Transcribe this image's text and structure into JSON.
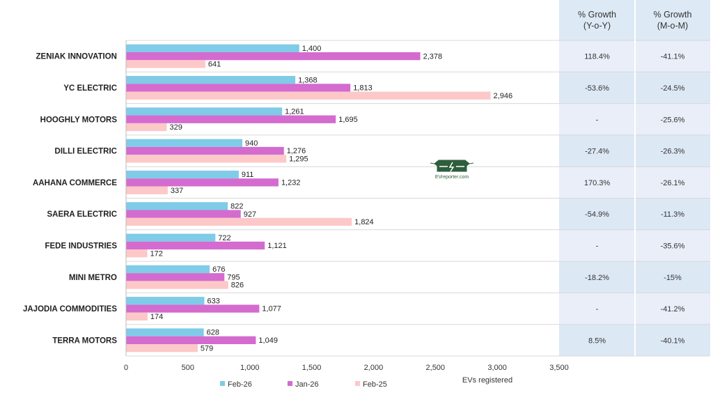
{
  "chart_data": {
    "type": "bar",
    "orientation": "horizontal",
    "categories": [
      "ZENIAK INNOVATION",
      "YC ELECTRIC",
      "HOOGHLY MOTORS",
      "DILLI ELECTRIC",
      "AAHANA COMMERCE",
      "SAERA ELECTRIC",
      "FEDE INDUSTRIES",
      "MINI METRO",
      "JAJODIA COMMODITIES",
      "TERRA MOTORS"
    ],
    "series": [
      {
        "name": "Feb-26",
        "color": "#7fcbe8",
        "values": [
          1400,
          1368,
          1261,
          940,
          911,
          822,
          722,
          676,
          633,
          628
        ],
        "labels": [
          "1,400",
          "1,368",
          "1,261",
          "940",
          "911",
          "822",
          "722",
          "676",
          "633",
          "628"
        ]
      },
      {
        "name": "Jan-26",
        "color": "#d46bcf",
        "values": [
          2378,
          1813,
          1695,
          1276,
          1232,
          927,
          1121,
          795,
          1077,
          1049
        ],
        "labels": [
          "2,378",
          "1,813",
          "1,695",
          "1,276",
          "1,232",
          "927",
          "1,121",
          "795",
          "1,077",
          "1,049"
        ]
      },
      {
        "name": "Feb-25",
        "color": "#fcc8c8",
        "values": [
          641,
          2946,
          329,
          1295,
          337,
          1824,
          172,
          826,
          174,
          579
        ],
        "labels": [
          "641",
          "2,946",
          "329",
          "1,295",
          "337",
          "1,824",
          "172",
          "826",
          "174",
          "579"
        ]
      }
    ],
    "xlabel": "EVs registered",
    "xlim": [
      0,
      3500
    ],
    "xticks": [
      "0",
      "500",
      "1,000",
      "1,500",
      "2,000",
      "2,500",
      "3,000",
      "3,500"
    ],
    "legend_placement": "bottom",
    "grid": false,
    "table": {
      "headers": [
        [
          "% Growth",
          "(Y-o-Y)"
        ],
        [
          "% Growth",
          "(M-o-M)"
        ]
      ],
      "rows": [
        [
          "118.4%",
          "-41.1%"
        ],
        [
          "-53.6%",
          "-24.5%"
        ],
        [
          "-",
          "-25.6%"
        ],
        [
          "-27.4%",
          "-26.3%"
        ],
        [
          "170.3%",
          "-26.1%"
        ],
        [
          "-54.9%",
          "-11.3%"
        ],
        [
          "-",
          "-35.6%"
        ],
        [
          "-18.2%",
          "-15%"
        ],
        [
          "-",
          "-41.2%"
        ],
        [
          "8.5%",
          "-40.1%"
        ]
      ],
      "header_color": "#dde9f5",
      "row_colors": [
        "#e9eef8",
        "#dde8f5"
      ]
    },
    "watermark": "EVreporter.com"
  }
}
